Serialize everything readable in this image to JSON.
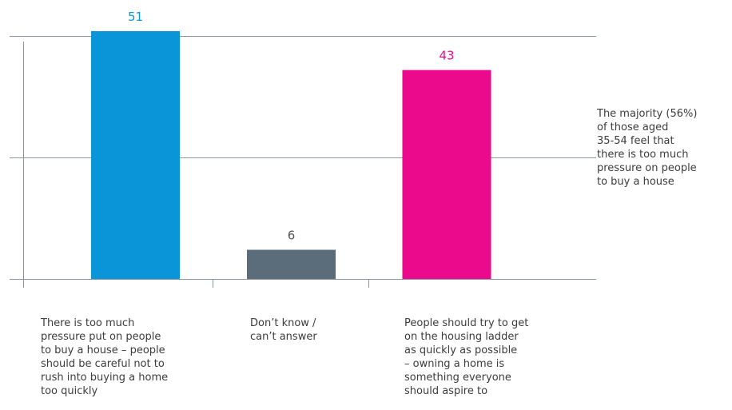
{
  "chart_data": {
    "type": "bar",
    "categories": [
      "There is too much\npressure put on people\nto buy a house – people\nshould be careful not to\nrush into buying a home\ntoo quickly",
      "Don’t know /\ncan’t answer",
      "People should try to get\non the housing ladder\nas quickly as possible\n– owning a home is\nsomething everyone\nshould aspire to"
    ],
    "values": [
      51,
      6,
      43
    ],
    "data_labels": [
      "51",
      "6",
      "43"
    ],
    "colors": [
      "#0b95d9",
      "#5b6d7a",
      "#ea0a8b"
    ],
    "label_colors": [
      "#0b95d9",
      "#555555",
      "#ea0a8b"
    ],
    "gridline_color": "#8a96a0",
    "ylim": [
      0,
      60
    ],
    "grid": true,
    "legend": "none"
  },
  "annotation": "The majority (56%)\nof those aged\n35-54 feel that\nthere is too much\npressure on people\nto buy a house"
}
